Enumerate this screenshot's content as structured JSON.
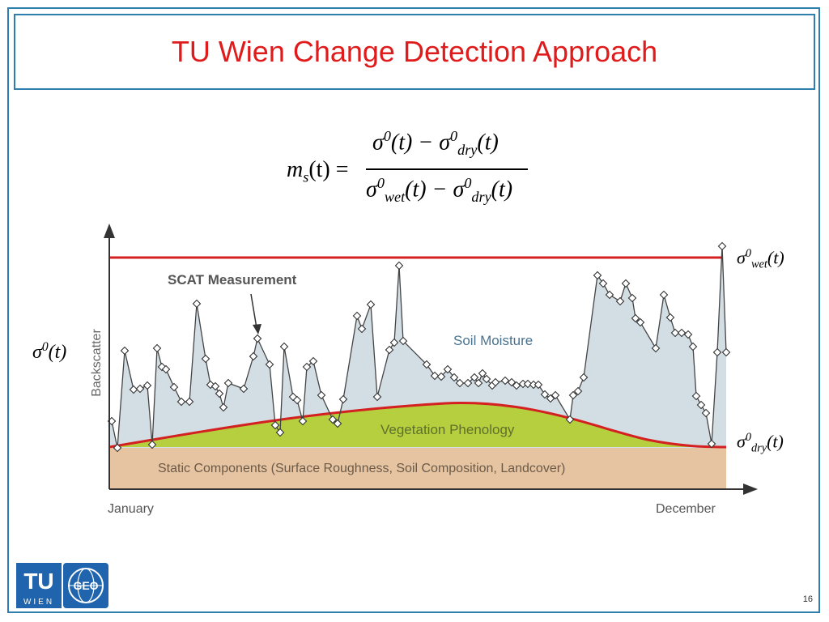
{
  "slide": {
    "title": "TU Wien Change Detection Approach",
    "page_number": "16"
  },
  "formula": {
    "lhs_m": "m",
    "lhs_sub": "s",
    "lhs_arg": "(t) =",
    "num_s1": "σ",
    "num_sup1": "0",
    "num_arg1": "(t) − ",
    "num_s2": "σ",
    "num_sup2": "0",
    "num_sub2": "dry",
    "num_arg2": "(t)",
    "den_s1": "σ",
    "den_sup1": "0",
    "den_sub1": "wet",
    "den_arg1": "(t) − ",
    "den_s2": "σ",
    "den_sup2": "0",
    "den_sub2": "dry",
    "den_arg2": "(t)"
  },
  "chart_labels": {
    "y_axis": "Backscatter",
    "x_start": "January",
    "x_end": "December",
    "scat_measurement": "SCAT Measurement",
    "soil_moisture": "Soil Moisture",
    "vegetation_phenology": "Vegetation Phenology",
    "static_components": "Static Components (Surface Roughness, Soil Composition, Landcover)",
    "sigma_left_s": "σ",
    "sigma_left_sup": "0",
    "sigma_left_arg": "(t)",
    "sigma_wet_s": "σ",
    "sigma_wet_sup": "0",
    "sigma_wet_sub": "wet",
    "sigma_wet_arg": "(t)",
    "sigma_dry_s": "σ",
    "sigma_dry_sup": "0",
    "sigma_dry_sub": "dry",
    "sigma_dry_arg": "(t)"
  },
  "logo": {
    "tu_top": "TU",
    "tu_bottom": "WIEN",
    "geo": "GEO"
  },
  "colors": {
    "accent_red": "#e01b1b",
    "frame_blue": "#2e7fb0",
    "soil_moisture_fill": "#d2dde4",
    "vegetation_fill": "#b5cf3e",
    "static_fill": "#e6c4a2",
    "tu_blue": "#1f64ad"
  }
}
